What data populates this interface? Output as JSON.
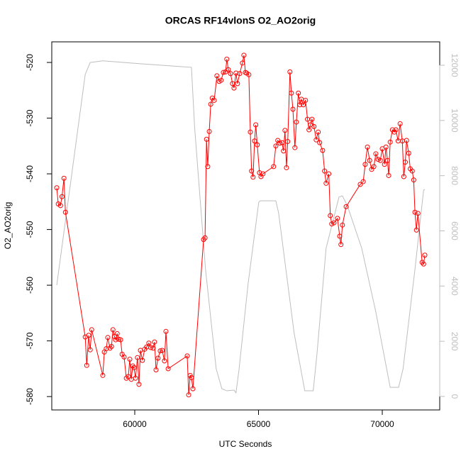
{
  "chart_data": {
    "type": "line",
    "title": "ORCAS RF14vlonS O2_AO2orig",
    "x_label": "UTC Seconds",
    "y_label": "O2_AO2orig",
    "xlim": [
      56648,
      72321
    ],
    "xticks": [
      60000,
      65000,
      70000
    ],
    "ylim": [
      -582.4,
      -516.3
    ],
    "yticks": [
      -580,
      -570,
      -560,
      -550,
      -540,
      -530,
      -520
    ],
    "y2lim": [
      -488,
      12848
    ],
    "y2ticks": [
      0,
      2000,
      4000,
      6000,
      8000,
      10000,
      12000
    ],
    "y2_color": "#bebebe",
    "series": [
      {
        "color": "#bebebe",
        "axis": "y2",
        "markers": false,
        "x": [
          56850,
          58000,
          58200,
          58710,
          60270,
          62290,
          62420,
          62860,
          63290,
          63520,
          63720,
          64010,
          64090,
          64210,
          64580,
          65010,
          65070,
          65700,
          65810,
          66440,
          66870,
          67210,
          67360,
          67730,
          68250,
          68390,
          68590,
          69170,
          69740,
          70320,
          70660,
          70840,
          71320,
          71670,
          71720
        ],
        "values": [
          4035,
          11670,
          12100,
          12160,
          12050,
          11925,
          9740,
          4600,
          1000,
          280,
          205,
          230,
          130,
          950,
          4090,
          7040,
          7090,
          7090,
          6660,
          2290,
          205,
          205,
          1520,
          5370,
          7220,
          7270,
          6910,
          5370,
          3060,
          330,
          330,
          1000,
          4600,
          7480,
          7500
        ]
      },
      {
        "color": "#ff0000",
        "axis": "y",
        "markers": true,
        "x": [
          56850,
          56910,
          57000,
          57060,
          57140,
          57200,
          58000,
          58060,
          58140,
          58200,
          58260,
          58710,
          58770,
          58850,
          58910,
          59000,
          59060,
          59120,
          59180,
          59230,
          59290,
          59350,
          59430,
          59490,
          59570,
          59660,
          59740,
          59800,
          59860,
          59920,
          59970,
          60030,
          60110,
          60170,
          60230,
          60310,
          60400,
          60480,
          60570,
          60650,
          60740,
          60800,
          60860,
          60940,
          61030,
          61110,
          61200,
          61260,
          61350,
          62120,
          62180,
          62240,
          62290,
          62350,
          62780,
          62840,
          62900,
          62950,
          63010,
          63070,
          63130,
          63210,
          63320,
          63410,
          63490,
          63580,
          63670,
          63720,
          63780,
          63870,
          63950,
          64010,
          64090,
          64150,
          64240,
          64350,
          64410,
          64470,
          64520,
          64610,
          64670,
          64720,
          64780,
          64840,
          64890,
          64950,
          65040,
          65100,
          65180,
          65610,
          65700,
          65780,
          65870,
          65950,
          66010,
          66070,
          66130,
          66180,
          66270,
          66330,
          66390,
          66470,
          66530,
          66610,
          66670,
          66730,
          66810,
          66900,
          66980,
          67040,
          67100,
          67160,
          67240,
          67330,
          67410,
          67470,
          67590,
          67670,
          67730,
          67840,
          67900,
          67960,
          68050,
          68190,
          68280,
          68330,
          68390,
          68540,
          69110,
          69230,
          69310,
          69400,
          69490,
          69570,
          69660,
          69740,
          69830,
          69920,
          70000,
          70090,
          70150,
          70210,
          70260,
          70320,
          70410,
          70490,
          70550,
          70640,
          70720,
          70810,
          70870,
          70930,
          70980,
          71070,
          71130,
          71210,
          71270,
          71320,
          71380,
          71440,
          71610,
          71670,
          71720
        ],
        "values": [
          -542.5,
          -545.4,
          -545.7,
          -544.1,
          -540.8,
          -546.9,
          -569.3,
          -574.4,
          -569.0,
          -571.6,
          -568.0,
          -576.2,
          -572.0,
          -571.4,
          -569.4,
          -571.3,
          -571.0,
          -568.0,
          -569.2,
          -569.8,
          -568.7,
          -569.7,
          -569.8,
          -572.4,
          -572.9,
          -576.7,
          -576.4,
          -573.3,
          -576.9,
          -574.5,
          -574.8,
          -576.7,
          -573.0,
          -577.8,
          -571.7,
          -573.5,
          -571.5,
          -571.1,
          -570.4,
          -571.2,
          -571.3,
          -570.2,
          -575.2,
          -573.1,
          -571.8,
          -571.7,
          -573.6,
          -568.3,
          -575.0,
          -572.7,
          -579.7,
          -576.2,
          -576.6,
          -578.6,
          -551.8,
          -551.5,
          -533.8,
          -538.7,
          -532.4,
          -527.5,
          -526.4,
          -526.8,
          -522.4,
          -523.4,
          -523.2,
          -521.8,
          -521.7,
          -519.4,
          -521.3,
          -522.0,
          -523.8,
          -524.6,
          -521.9,
          -523.8,
          -522.0,
          -520.1,
          -518.7,
          -521.8,
          -521.9,
          -522.2,
          -532.5,
          -539.5,
          -540.6,
          -534.1,
          -531.2,
          -534.8,
          -539.8,
          -540.5,
          -540.0,
          -538.7,
          -535.0,
          -534.0,
          -534.5,
          -534.4,
          -535.9,
          -532.2,
          -538.9,
          -534.2,
          -521.7,
          -525.5,
          -528.4,
          -535.3,
          -530.7,
          -525.5,
          -527.6,
          -526.6,
          -527.6,
          -526.8,
          -530.2,
          -532.1,
          -531.2,
          -530.2,
          -531.5,
          -533.9,
          -532.5,
          -534.4,
          -535.8,
          -539.5,
          -541.7,
          -540.0,
          -547.5,
          -549.0,
          -548.8,
          -548.0,
          -551.2,
          -552.7,
          -549.2,
          -545.9,
          -541.9,
          -541.4,
          -538.3,
          -535.2,
          -537.6,
          -539.2,
          -538.7,
          -536.4,
          -537.4,
          -537.6,
          -535.5,
          -538.3,
          -535.2,
          -537.6,
          -540.3,
          -534.3,
          -532.1,
          -532.5,
          -532.1,
          -534.1,
          -531.0,
          -534.1,
          -540.5,
          -537.9,
          -534.0,
          -536.3,
          -539.1,
          -539.5,
          -541.1,
          -546.9,
          -550.1,
          -547.1,
          -555.9,
          -556.2,
          -554.6
        ]
      }
    ]
  }
}
